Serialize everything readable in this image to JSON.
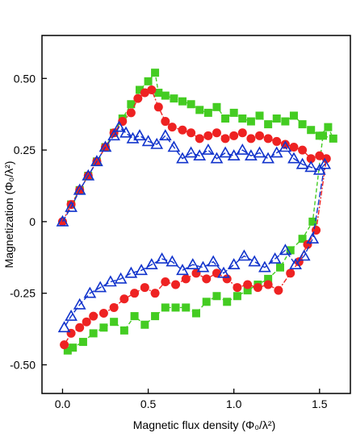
{
  "chart_data": {
    "type": "scatter",
    "xlabel": "Magnetic flux density (Φ₀/λ²)",
    "ylabel": "Magnetization (Φ₀/λ²)",
    "xlim": [
      -0.12,
      1.68
    ],
    "ylim": [
      -0.6,
      0.65
    ],
    "x_ticks": [
      0,
      0.5,
      1,
      1.5
    ],
    "x_tick_labels": [
      "0.0",
      "0.5",
      "1.0",
      "1.5"
    ],
    "y_ticks": [
      0.5,
      0.25,
      0,
      -0.25,
      -0.5
    ],
    "y_tick_labels": [
      "0.50",
      "0.25",
      "0",
      "-0.25",
      "-0.50"
    ],
    "grid": false,
    "series": [
      {
        "marker": "square",
        "color": "#44cc22",
        "x": [
          0.05,
          0.1,
          0.15,
          0.2,
          0.25,
          0.3,
          0.35,
          0.4,
          0.45,
          0.5,
          0.54,
          0.56,
          0.6,
          0.65,
          0.7,
          0.75,
          0.8,
          0.85,
          0.9,
          0.95,
          1.0,
          1.05,
          1.1,
          1.15,
          1.2,
          1.25,
          1.3,
          1.35,
          1.4,
          1.45,
          1.5,
          1.55,
          1.58,
          1.52,
          1.46,
          1.4,
          1.33,
          1.27,
          1.2,
          1.14,
          1.08,
          1.02,
          0.96,
          0.9,
          0.84,
          0.78,
          0.72,
          0.66,
          0.6,
          0.54,
          0.48,
          0.42,
          0.36,
          0.3,
          0.24,
          0.18,
          0.12,
          0.06,
          0.03
        ],
        "y": [
          0.06,
          0.11,
          0.16,
          0.21,
          0.26,
          0.31,
          0.36,
          0.41,
          0.46,
          0.49,
          0.52,
          0.45,
          0.44,
          0.43,
          0.42,
          0.41,
          0.39,
          0.38,
          0.4,
          0.36,
          0.38,
          0.36,
          0.35,
          0.37,
          0.34,
          0.36,
          0.35,
          0.37,
          0.34,
          0.32,
          0.3,
          0.33,
          0.29,
          0.3,
          0.0,
          -0.06,
          -0.1,
          -0.16,
          -0.2,
          -0.22,
          -0.24,
          -0.26,
          -0.28,
          -0.26,
          -0.28,
          -0.32,
          -0.3,
          -0.3,
          -0.3,
          -0.33,
          -0.36,
          -0.33,
          -0.38,
          -0.35,
          -0.37,
          -0.39,
          -0.42,
          -0.44,
          -0.45
        ]
      },
      {
        "marker": "circle",
        "color": "#ee2222",
        "x": [
          0.0,
          0.05,
          0.1,
          0.15,
          0.2,
          0.25,
          0.3,
          0.35,
          0.4,
          0.44,
          0.48,
          0.52,
          0.56,
          0.6,
          0.64,
          0.7,
          0.75,
          0.8,
          0.85,
          0.9,
          0.95,
          1.0,
          1.05,
          1.1,
          1.15,
          1.2,
          1.25,
          1.3,
          1.35,
          1.4,
          1.45,
          1.5,
          1.54,
          1.48,
          1.43,
          1.38,
          1.33,
          1.26,
          1.2,
          1.14,
          1.08,
          1.02,
          0.96,
          0.9,
          0.84,
          0.78,
          0.72,
          0.66,
          0.6,
          0.54,
          0.48,
          0.42,
          0.36,
          0.3,
          0.24,
          0.18,
          0.14,
          0.1,
          0.05,
          0.01
        ],
        "y": [
          0.0,
          0.06,
          0.11,
          0.16,
          0.21,
          0.26,
          0.31,
          0.35,
          0.38,
          0.43,
          0.45,
          0.46,
          0.4,
          0.35,
          0.33,
          0.32,
          0.31,
          0.29,
          0.3,
          0.31,
          0.29,
          0.3,
          0.31,
          0.29,
          0.3,
          0.29,
          0.28,
          0.27,
          0.26,
          0.25,
          0.22,
          0.23,
          0.22,
          -0.03,
          -0.08,
          -0.14,
          -0.18,
          -0.24,
          -0.22,
          -0.23,
          -0.22,
          -0.23,
          -0.2,
          -0.18,
          -0.2,
          -0.18,
          -0.2,
          -0.22,
          -0.21,
          -0.25,
          -0.23,
          -0.25,
          -0.27,
          -0.3,
          -0.32,
          -0.33,
          -0.35,
          -0.37,
          -0.39,
          -0.43
        ]
      },
      {
        "marker": "triangle",
        "color": "#1133cc",
        "x": [
          0.0,
          0.05,
          0.1,
          0.15,
          0.2,
          0.25,
          0.3,
          0.33,
          0.37,
          0.41,
          0.45,
          0.5,
          0.55,
          0.6,
          0.65,
          0.7,
          0.75,
          0.8,
          0.85,
          0.9,
          0.95,
          1.0,
          1.05,
          1.1,
          1.15,
          1.2,
          1.25,
          1.3,
          1.35,
          1.4,
          1.45,
          1.5,
          1.53,
          1.46,
          1.41,
          1.36,
          1.3,
          1.24,
          1.18,
          1.12,
          1.06,
          1.0,
          0.94,
          0.88,
          0.82,
          0.76,
          0.7,
          0.64,
          0.58,
          0.52,
          0.46,
          0.4,
          0.34,
          0.28,
          0.22,
          0.16,
          0.1,
          0.05,
          0.01
        ],
        "y": [
          0.0,
          0.05,
          0.11,
          0.16,
          0.21,
          0.26,
          0.3,
          0.33,
          0.31,
          0.29,
          0.3,
          0.28,
          0.27,
          0.3,
          0.26,
          0.22,
          0.24,
          0.23,
          0.25,
          0.22,
          0.24,
          0.23,
          0.25,
          0.23,
          0.24,
          0.22,
          0.24,
          0.26,
          0.22,
          0.2,
          0.19,
          0.18,
          0.2,
          -0.06,
          -0.12,
          -0.15,
          -0.1,
          -0.13,
          -0.16,
          -0.14,
          -0.12,
          -0.15,
          -0.18,
          -0.14,
          -0.16,
          -0.15,
          -0.17,
          -0.14,
          -0.13,
          -0.15,
          -0.17,
          -0.18,
          -0.2,
          -0.21,
          -0.23,
          -0.25,
          -0.29,
          -0.33,
          -0.37
        ]
      }
    ]
  }
}
